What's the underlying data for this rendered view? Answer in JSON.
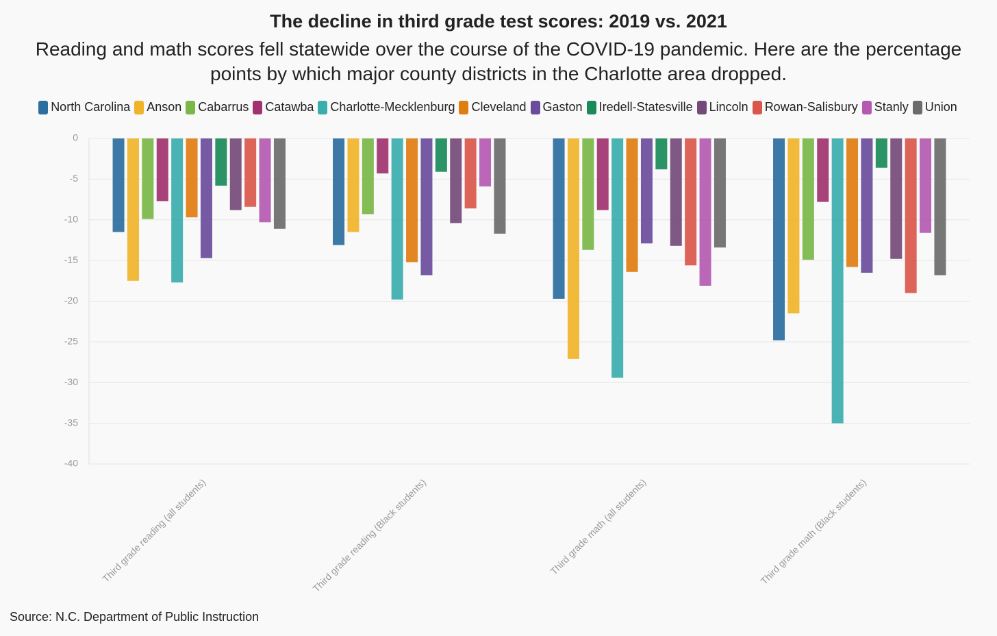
{
  "chart_data": {
    "type": "bar",
    "title": "The decline in third grade test scores: 2019 vs. 2021",
    "subtitle": "Reading and math scores fell statewide over the course of the COVID-19 pandemic. Here are the percentage points by which major county districts in the Charlotte area dropped.",
    "source": "Source: N.C. Department of Public Instruction",
    "categories": [
      "Third grade reading (all students)",
      "Third grade reading (Black students)",
      "Third grade math (all students)",
      "Third grade math (Black students)"
    ],
    "ylim": [
      -40,
      0
    ],
    "yticks": [
      0,
      -5,
      -10,
      -15,
      -20,
      -25,
      -30,
      -35,
      -40
    ],
    "grid": true,
    "series": [
      {
        "name": "North Carolina",
        "color": "#2c6e9e",
        "values": [
          -11.5,
          -13.1,
          -19.7,
          -24.8
        ]
      },
      {
        "name": "Anson",
        "color": "#f0b429",
        "values": [
          -17.5,
          -11.5,
          -27.1,
          -21.5
        ]
      },
      {
        "name": "Cabarrus",
        "color": "#7ab648",
        "values": [
          -9.9,
          -9.3,
          -13.7,
          -14.9
        ]
      },
      {
        "name": "Catawba",
        "color": "#a0336f",
        "values": [
          -7.7,
          -4.3,
          -8.8,
          -7.8
        ]
      },
      {
        "name": "Charlotte-Mecklenburg",
        "color": "#3aaeac",
        "values": [
          -17.7,
          -19.8,
          -29.4,
          -35.0
        ]
      },
      {
        "name": "Cleveland",
        "color": "#e07d10",
        "values": [
          -9.7,
          -15.2,
          -16.4,
          -15.8
        ]
      },
      {
        "name": "Gaston",
        "color": "#6a4c9c",
        "values": [
          -14.7,
          -16.8,
          -12.9,
          -16.5
        ]
      },
      {
        "name": "Iredell-Statesville",
        "color": "#1a8a5a",
        "values": [
          -5.8,
          -4.1,
          -3.8,
          -3.6
        ]
      },
      {
        "name": "Lincoln",
        "color": "#754a7a",
        "values": [
          -8.8,
          -10.4,
          -13.2,
          -14.8
        ]
      },
      {
        "name": "Rowan-Salisbury",
        "color": "#d9574a",
        "values": [
          -8.4,
          -8.6,
          -15.6,
          -19.0
        ]
      },
      {
        "name": "Stanly",
        "color": "#b35ab0",
        "values": [
          -10.3,
          -5.9,
          -18.1,
          -11.6
        ]
      },
      {
        "name": "Union",
        "color": "#6b6b6b",
        "values": [
          -11.1,
          -11.7,
          -13.4,
          -16.8
        ]
      }
    ]
  }
}
